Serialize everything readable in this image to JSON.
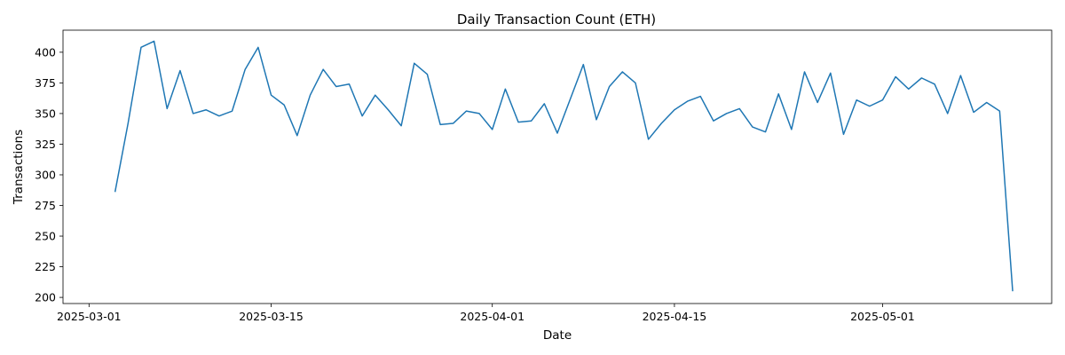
{
  "chart_data": {
    "type": "line",
    "title": "Daily Transaction Count (ETH)",
    "xlabel": "Date",
    "ylabel": "Transactions",
    "x_tick_labels": [
      "2025-03-01",
      "2025-03-15",
      "2025-04-01",
      "2025-04-15",
      "2025-05-01"
    ],
    "y_tick_labels": [
      "200",
      "225",
      "250",
      "275",
      "300",
      "325",
      "350",
      "375",
      "400"
    ],
    "ylim": [
      195,
      418
    ],
    "xlim": [
      "2025-02-27",
      "2025-05-14"
    ],
    "grid": false,
    "legend": "none",
    "series": [
      {
        "color": "#1f77b4",
        "x": [
          "2025-03-03",
          "2025-03-04",
          "2025-03-05",
          "2025-03-06",
          "2025-03-07",
          "2025-03-08",
          "2025-03-09",
          "2025-03-10",
          "2025-03-11",
          "2025-03-12",
          "2025-03-13",
          "2025-03-14",
          "2025-03-15",
          "2025-03-16",
          "2025-03-17",
          "2025-03-18",
          "2025-03-19",
          "2025-03-20",
          "2025-03-21",
          "2025-03-22",
          "2025-03-23",
          "2025-03-24",
          "2025-03-25",
          "2025-03-26",
          "2025-03-27",
          "2025-03-28",
          "2025-03-29",
          "2025-03-30",
          "2025-03-31",
          "2025-04-01",
          "2025-04-02",
          "2025-04-03",
          "2025-04-04",
          "2025-04-05",
          "2025-04-06",
          "2025-04-07",
          "2025-04-08",
          "2025-04-09",
          "2025-04-10",
          "2025-04-11",
          "2025-04-12",
          "2025-04-13",
          "2025-04-14",
          "2025-04-15",
          "2025-04-16",
          "2025-04-17",
          "2025-04-18",
          "2025-04-19",
          "2025-04-20",
          "2025-04-21",
          "2025-04-22",
          "2025-04-23",
          "2025-04-24",
          "2025-04-25",
          "2025-04-26",
          "2025-04-27",
          "2025-04-28",
          "2025-04-29",
          "2025-04-30",
          "2025-05-01",
          "2025-05-02",
          "2025-05-03",
          "2025-05-04",
          "2025-05-05",
          "2025-05-06",
          "2025-05-07",
          "2025-05-08",
          "2025-05-09",
          "2025-05-10",
          "2025-05-11"
        ],
        "y": [
          286,
          342,
          404,
          409,
          354,
          385,
          350,
          353,
          348,
          352,
          386,
          404,
          365,
          357,
          332,
          365,
          386,
          372,
          374,
          348,
          365,
          353,
          340,
          391,
          382,
          341,
          342,
          352,
          350,
          337,
          370,
          343,
          344,
          358,
          334,
          362,
          390,
          345,
          372,
          384,
          375,
          329,
          342,
          353,
          360,
          364,
          344,
          350,
          354,
          339,
          335,
          366,
          337,
          384,
          359,
          383,
          333,
          361,
          356,
          361,
          380,
          370,
          379,
          374,
          350,
          381,
          351,
          359,
          352,
          205
        ]
      }
    ]
  }
}
